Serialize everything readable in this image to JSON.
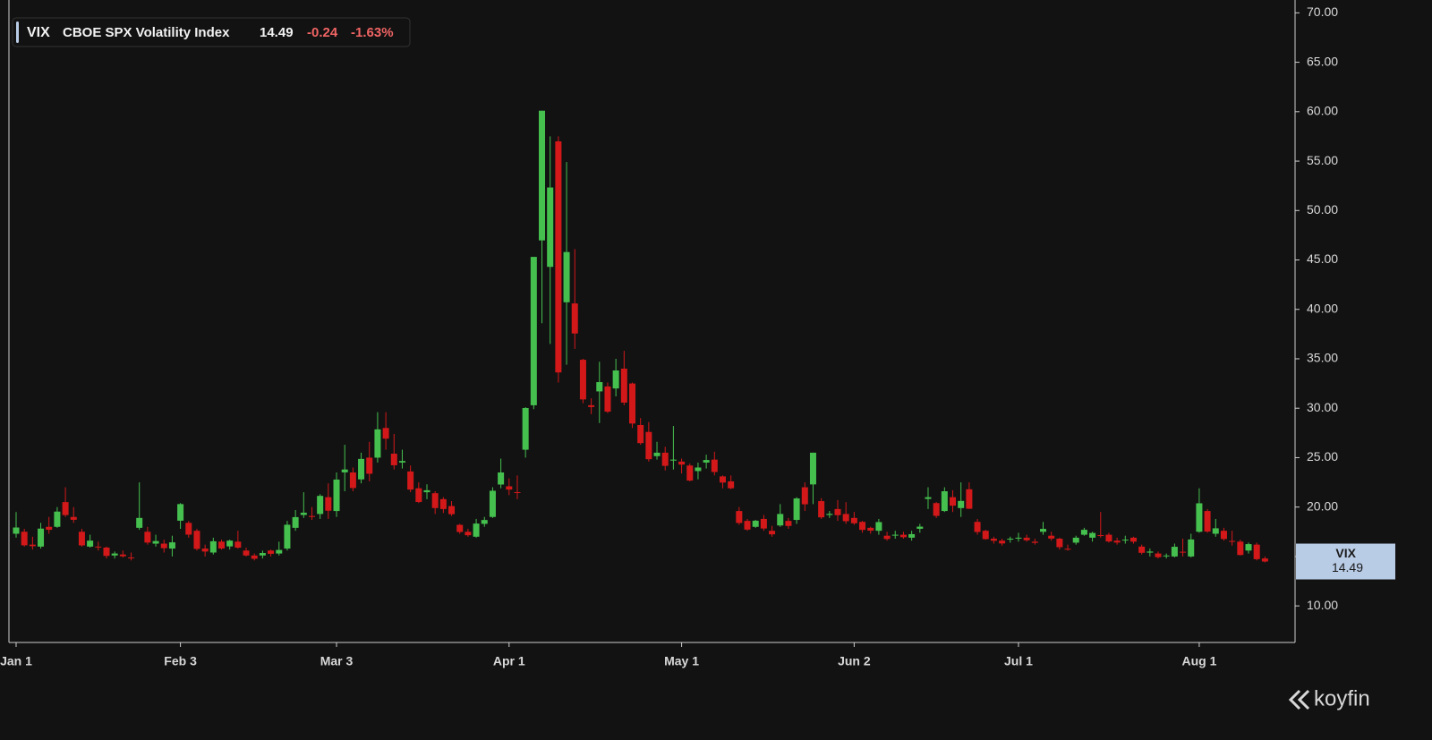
{
  "chart_data": {
    "type": "candlestick",
    "header": {
      "name": "CBOE SPX Volatility Index",
      "change": "-0.24",
      "change_pct": "-1.63%"
    },
    "series_name": "VIX",
    "up_color": "#45c04f",
    "down_color": "#d3181a",
    "ylim": [
      6.3,
      71.3
    ],
    "yticks": [
      {
        "value": 10,
        "label": "10.00"
      },
      {
        "value": 15,
        "label": "15.00"
      },
      {
        "value": 20,
        "label": "20.00"
      },
      {
        "value": 25,
        "label": "25.00"
      },
      {
        "value": 30,
        "label": "30.00"
      },
      {
        "value": 35,
        "label": "35.00"
      },
      {
        "value": 40,
        "label": "40.00"
      },
      {
        "value": 45,
        "label": "45.00"
      },
      {
        "value": 50,
        "label": "50.00"
      },
      {
        "value": 55,
        "label": "55.00"
      },
      {
        "value": 60,
        "label": "60.00"
      },
      {
        "value": 65,
        "label": "65.00"
      },
      {
        "value": 70,
        "label": "70.00"
      }
    ],
    "xticks": [
      {
        "value": 0,
        "label": "Jan 1"
      },
      {
        "value": 20,
        "label": "Feb 3"
      },
      {
        "value": 39,
        "label": "Mar 3"
      },
      {
        "value": 60,
        "label": "Apr 1"
      },
      {
        "value": 81,
        "label": "May 1"
      },
      {
        "value": 102,
        "label": "Jun 2"
      },
      {
        "value": 122,
        "label": "Jul 1"
      },
      {
        "value": 144,
        "label": "Aug 1"
      }
    ],
    "ohlc": [
      [
        17.3,
        19.5,
        16.9,
        17.93
      ],
      [
        17.5,
        17.8,
        16.0,
        16.13
      ],
      [
        16.2,
        17.0,
        15.7,
        16.04
      ],
      [
        16.0,
        18.4,
        15.8,
        17.82
      ],
      [
        18.0,
        19.0,
        17.3,
        17.7
      ],
      [
        18.0,
        20.0,
        17.9,
        19.54
      ],
      [
        20.5,
        22.0,
        19.0,
        19.19
      ],
      [
        19.0,
        20.0,
        18.4,
        18.71
      ],
      [
        17.5,
        17.8,
        16.0,
        16.12
      ],
      [
        16.0,
        17.2,
        15.9,
        16.6
      ],
      [
        16.0,
        16.5,
        15.6,
        15.97
      ],
      [
        15.9,
        16.0,
        14.8,
        15.06
      ],
      [
        15.3,
        15.5,
        14.8,
        15.1
      ],
      [
        15.2,
        15.6,
        14.9,
        15.02
      ],
      [
        14.9,
        15.4,
        14.6,
        14.85
      ],
      [
        18.9,
        22.5,
        17.7,
        17.9
      ],
      [
        17.5,
        18.0,
        16.2,
        16.41
      ],
      [
        16.3,
        17.2,
        16.0,
        16.56
      ],
      [
        16.3,
        16.7,
        15.4,
        15.84
      ],
      [
        15.8,
        17.1,
        15.0,
        16.43
      ],
      [
        20.3,
        20.4,
        17.8,
        18.62
      ],
      [
        18.4,
        18.6,
        16.9,
        17.21
      ],
      [
        17.6,
        17.8,
        15.6,
        15.77
      ],
      [
        15.8,
        16.2,
        15.0,
        15.5
      ],
      [
        15.4,
        16.9,
        15.2,
        16.54
      ],
      [
        16.5,
        16.7,
        15.7,
        15.81
      ],
      [
        16.6,
        16.7,
        15.7,
        16.02
      ],
      [
        16.5,
        17.6,
        15.8,
        15.89
      ],
      [
        15.6,
        15.9,
        15.0,
        15.1
      ],
      [
        15.1,
        15.3,
        14.6,
        14.77
      ],
      [
        15.1,
        15.6,
        14.8,
        15.35
      ],
      [
        15.6,
        15.7,
        15.0,
        15.27
      ],
      [
        15.3,
        16.5,
        15.1,
        15.66
      ],
      [
        15.8,
        18.6,
        15.6,
        18.21
      ],
      [
        17.9,
        19.7,
        17.6,
        18.98
      ],
      [
        19.2,
        21.5,
        18.9,
        19.43
      ],
      [
        19.0,
        20.0,
        18.7,
        19.1
      ],
      [
        19.3,
        21.3,
        18.8,
        21.13
      ],
      [
        21.0,
        22.4,
        18.8,
        19.63
      ],
      [
        19.6,
        23.5,
        19.0,
        22.78
      ],
      [
        23.8,
        26.3,
        21.6,
        23.51
      ],
      [
        23.5,
        24.0,
        21.6,
        21.93
      ],
      [
        22.8,
        25.5,
        22.4,
        24.87
      ],
      [
        25.0,
        26.6,
        22.6,
        23.37
      ],
      [
        25.0,
        29.6,
        24.5,
        27.86
      ],
      [
        28.0,
        29.6,
        25.8,
        26.92
      ],
      [
        25.4,
        27.4,
        23.8,
        24.23
      ],
      [
        24.5,
        25.8,
        23.9,
        24.66
      ],
      [
        23.6,
        24.2,
        21.5,
        21.77
      ],
      [
        21.9,
        22.5,
        20.4,
        20.51
      ],
      [
        21.5,
        22.3,
        20.8,
        21.7
      ],
      [
        21.4,
        21.6,
        19.3,
        19.9
      ],
      [
        20.8,
        21.0,
        19.4,
        19.8
      ],
      [
        20.1,
        20.6,
        19.1,
        19.28
      ],
      [
        18.2,
        18.3,
        17.3,
        17.48
      ],
      [
        17.5,
        17.8,
        17.0,
        17.15
      ],
      [
        17.0,
        18.8,
        16.9,
        18.33
      ],
      [
        18.3,
        19.0,
        18.0,
        18.69
      ],
      [
        19.0,
        22.0,
        18.9,
        21.65
      ],
      [
        23.5,
        24.9,
        21.9,
        22.28
      ],
      [
        22.1,
        22.9,
        21.2,
        21.77
      ],
      [
        21.5,
        23.2,
        20.8,
        21.51
      ],
      [
        25.8,
        30.1,
        25.0,
        30.02
      ],
      [
        30.3,
        45.3,
        29.9,
        45.31
      ],
      [
        60.1,
        60.1,
        38.6,
        46.98
      ],
      [
        44.3,
        57.5,
        36.5,
        52.33
      ],
      [
        57.0,
        57.5,
        32.6,
        33.62
      ],
      [
        45.8,
        54.9,
        34.4,
        40.72
      ],
      [
        40.6,
        46.1,
        36.0,
        37.56
      ],
      [
        34.9,
        35.0,
        30.5,
        30.89
      ],
      [
        30.3,
        31.0,
        29.4,
        30.12
      ],
      [
        31.7,
        34.7,
        28.5,
        32.64
      ],
      [
        32.2,
        32.6,
        29.5,
        29.65
      ],
      [
        32.0,
        35.0,
        31.2,
        33.82
      ],
      [
        34.0,
        35.8,
        30.3,
        30.57
      ],
      [
        32.5,
        32.6,
        28.0,
        28.45
      ],
      [
        28.3,
        29.0,
        26.3,
        26.47
      ],
      [
        27.6,
        28.6,
        24.6,
        24.84
      ],
      [
        25.5,
        26.6,
        24.8,
        25.15
      ],
      [
        25.5,
        26.1,
        23.7,
        24.17
      ],
      [
        24.8,
        28.2,
        23.8,
        24.7
      ],
      [
        24.3,
        24.9,
        23.4,
        24.6
      ],
      [
        24.2,
        24.4,
        22.6,
        22.68
      ],
      [
        24.0,
        24.5,
        22.8,
        23.64
      ],
      [
        24.5,
        25.3,
        23.9,
        24.76
      ],
      [
        24.8,
        25.6,
        23.2,
        23.55
      ],
      [
        23.1,
        23.2,
        21.9,
        22.48
      ],
      [
        22.6,
        23.2,
        21.8,
        21.9
      ],
      [
        19.6,
        20.0,
        18.2,
        18.39
      ],
      [
        18.6,
        18.8,
        17.6,
        17.72
      ],
      [
        18.0,
        18.7,
        17.9,
        18.62
      ],
      [
        18.8,
        19.2,
        17.6,
        17.83
      ],
      [
        17.6,
        18.1,
        17.0,
        17.24
      ],
      [
        19.3,
        20.3,
        18.0,
        18.14
      ],
      [
        18.6,
        18.9,
        17.8,
        18.09
      ],
      [
        18.7,
        21.0,
        18.3,
        20.87
      ],
      [
        22.0,
        22.5,
        19.6,
        20.28
      ],
      [
        25.5,
        25.5,
        20.3,
        22.29
      ],
      [
        20.6,
        20.9,
        18.8,
        18.96
      ],
      [
        19.2,
        19.6,
        18.9,
        19.31
      ],
      [
        19.8,
        20.7,
        18.6,
        19.18
      ],
      [
        19.3,
        20.5,
        18.3,
        18.57
      ],
      [
        18.9,
        19.5,
        18.2,
        18.36
      ],
      [
        18.5,
        18.6,
        17.4,
        17.69
      ],
      [
        17.9,
        18.0,
        17.3,
        17.61
      ],
      [
        17.6,
        18.8,
        17.2,
        18.48
      ],
      [
        17.1,
        17.5,
        16.6,
        16.77
      ],
      [
        17.2,
        17.6,
        16.8,
        17.16
      ],
      [
        17.2,
        17.5,
        16.8,
        16.95
      ],
      [
        16.9,
        17.6,
        16.6,
        17.26
      ],
      [
        17.8,
        18.3,
        17.4,
        18.02
      ],
      [
        21.0,
        22.0,
        19.8,
        20.82
      ],
      [
        20.4,
        20.5,
        18.9,
        19.11
      ],
      [
        19.6,
        22.0,
        19.5,
        21.6
      ],
      [
        21.0,
        21.7,
        19.5,
        20.14
      ],
      [
        19.9,
        22.5,
        19.0,
        20.62
      ],
      [
        21.8,
        22.5,
        19.8,
        19.83
      ],
      [
        18.5,
        18.8,
        17.2,
        17.48
      ],
      [
        17.6,
        17.7,
        16.7,
        16.76
      ],
      [
        16.8,
        17.0,
        16.3,
        16.59
      ],
      [
        16.6,
        16.8,
        16.1,
        16.32
      ],
      [
        16.8,
        17.0,
        16.4,
        16.73
      ],
      [
        16.9,
        17.4,
        16.5,
        16.83
      ],
      [
        16.9,
        17.2,
        16.5,
        16.64
      ],
      [
        16.5,
        16.8,
        16.2,
        16.38
      ],
      [
        17.5,
        18.5,
        17.2,
        17.79
      ],
      [
        17.1,
        17.5,
        16.6,
        16.81
      ],
      [
        16.8,
        16.9,
        15.7,
        15.94
      ],
      [
        15.7,
        16.2,
        15.6,
        15.78
      ],
      [
        16.9,
        17.1,
        16.2,
        16.4
      ],
      [
        17.7,
        17.9,
        17.1,
        17.2
      ],
      [
        16.9,
        17.5,
        16.5,
        17.38
      ],
      [
        17.1,
        19.5,
        16.9,
        17.16
      ],
      [
        17.2,
        17.4,
        16.4,
        16.52
      ],
      [
        16.6,
        16.9,
        16.2,
        16.41
      ],
      [
        16.7,
        17.1,
        16.3,
        16.65
      ],
      [
        16.9,
        17.0,
        16.3,
        16.5
      ],
      [
        16.0,
        16.2,
        15.2,
        15.37
      ],
      [
        15.5,
        15.8,
        15.0,
        15.39
      ],
      [
        15.3,
        15.5,
        14.8,
        14.93
      ],
      [
        15.1,
        15.3,
        14.8,
        15.03
      ],
      [
        15.0,
        16.3,
        14.9,
        15.98
      ],
      [
        15.4,
        16.8,
        15.0,
        15.48
      ],
      [
        15.0,
        17.3,
        14.9,
        16.72
      ],
      [
        17.5,
        21.9,
        17.4,
        20.38
      ],
      [
        19.6,
        19.8,
        17.4,
        17.52
      ],
      [
        17.3,
        18.8,
        17.0,
        17.85
      ],
      [
        17.6,
        17.9,
        16.6,
        16.77
      ],
      [
        16.5,
        17.6,
        16.1,
        16.57
      ],
      [
        16.5,
        16.7,
        15.1,
        15.15
      ],
      [
        15.6,
        16.4,
        15.3,
        16.25
      ],
      [
        16.2,
        16.4,
        14.6,
        14.73
      ],
      [
        14.8,
        15.0,
        14.4,
        14.49
      ]
    ],
    "brand": "koyfin"
  }
}
